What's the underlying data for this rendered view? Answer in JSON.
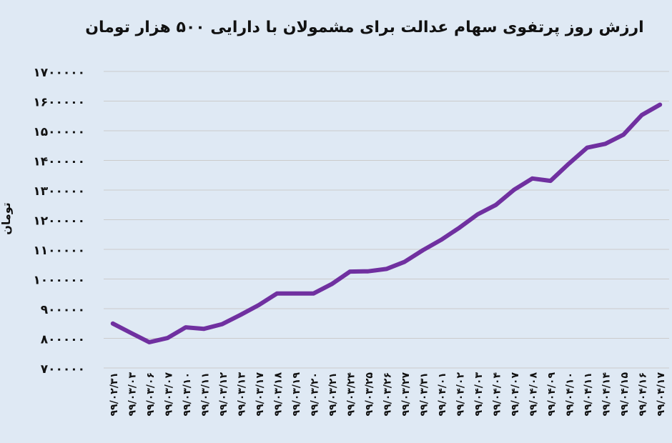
{
  "chart_data": {
    "type": "line",
    "title": "ارزش روز پرتفوی سهام عدالت برای مشمولان با دارایی ۵۰۰ هزار تومان",
    "xlabel": "",
    "ylabel": "تومان",
    "ylim": [
      700000,
      1700000
    ],
    "yticks": [
      700000,
      800000,
      900000,
      1000000,
      1100000,
      1200000,
      1300000,
      1400000,
      1500000,
      1600000,
      1700000
    ],
    "ytick_labels": [
      "۷۰۰۰۰۰",
      "۸۰۰۰۰۰",
      "۹۰۰۰۰۰",
      "۱۰۰۰۰۰۰",
      "۱۱۰۰۰۰۰",
      "۱۲۰۰۰۰۰",
      "۱۳۰۰۰۰۰",
      "۱۴۰۰۰۰۰",
      "۱۵۰۰۰۰۰",
      "۱۶۰۰۰۰۰",
      "۱۷۰۰۰۰۰"
    ],
    "grid": true,
    "categories": [
      "۹۹/۰۲/۳۱",
      "۹۹/۰۳/۰۳",
      "۹۹/۰۳/۰۶",
      "۹۹/۰۳/۰۷",
      "۹۹/۰۳/۱۰",
      "۹۹/۰۳/۱۱",
      "۹۹/۰۳/۱۲",
      "۹۹/۰۳/۱۳",
      "۹۹/۰۳/۱۷",
      "۹۹/۰۳/۱۸",
      "۹۹/۰۳/۱۹",
      "۹۹/۰۳/۲۰",
      "۹۹/۰۳/۲۱",
      "۹۹/۰۳/۲۴",
      "۹۹/۰۳/۲۵",
      "۹۹/۰۳/۲۶",
      "۹۹/۰۳/۲۷",
      "۹۹/۰۳/۳۱",
      "۹۹/۰۴/۰۱",
      "۹۹/۰۴/۰۲",
      "۹۹/۰۴/۰۳",
      "۹۹/۰۴/۰۴",
      "۹۹/۰۴/۰۷",
      "۹۹/۰۴/۰۸",
      "۹۹/۰۴/۰۹",
      "۹۹/۰۴/۱۰",
      "۹۹/۰۴/۱۱",
      "۹۹/۰۴/۱۴",
      "۹۹/۰۴/۱۵",
      "۹۹/۰۴/۱۶",
      "۹۹/۰۴/۱۷"
    ],
    "series": [
      {
        "color": "#7030a0",
        "values": [
          850000,
          818000,
          787000,
          801000,
          837000,
          832000,
          848000,
          879000,
          912000,
          951000,
          951000,
          951000,
          983000,
          1025000,
          1026000,
          1034000,
          1058000,
          1097000,
          1132000,
          1173000,
          1218000,
          1250000,
          1301000,
          1339000,
          1331000,
          1389000,
          1443000,
          1456000,
          1487000,
          1553000,
          1588000
        ]
      }
    ]
  }
}
